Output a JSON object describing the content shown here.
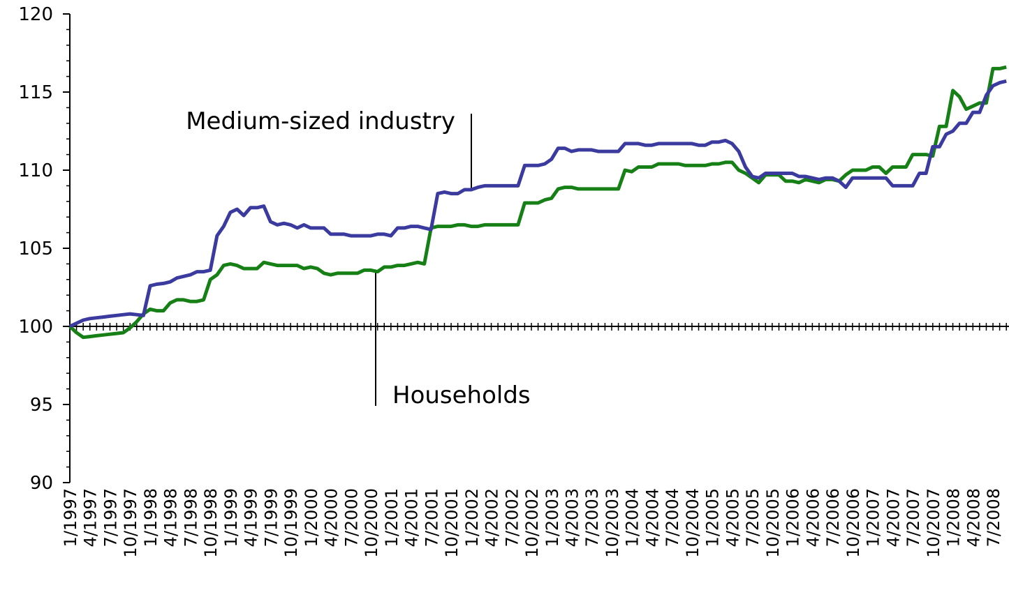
{
  "chart_data": {
    "type": "line",
    "categories": [
      "1/1997",
      null,
      null,
      "4/1997",
      null,
      null,
      "7/1997",
      null,
      null,
      "10/1997",
      null,
      null,
      "1/1998",
      null,
      null,
      "4/1998",
      null,
      null,
      "7/1998",
      null,
      null,
      "10/1998",
      null,
      null,
      "1/1999",
      null,
      null,
      "4/1999",
      null,
      null,
      "7/1999",
      null,
      null,
      "10/1999",
      null,
      null,
      "1/2000",
      null,
      null,
      "4/2000",
      null,
      null,
      "7/2000",
      null,
      null,
      "10/2000",
      null,
      null,
      "1/2001",
      null,
      null,
      "4/2001",
      null,
      null,
      "7/2001",
      null,
      null,
      "10/2001",
      null,
      null,
      "1/2002",
      null,
      null,
      "4/2002",
      null,
      null,
      "7/2002",
      null,
      null,
      "10/2002",
      null,
      null,
      "1/2003",
      null,
      null,
      "4/2003",
      null,
      null,
      "7/2003",
      null,
      null,
      "10/2003",
      null,
      null,
      "1/2004",
      null,
      null,
      "4/2004",
      null,
      null,
      "7/2004",
      null,
      null,
      "10/2004",
      null,
      null,
      "1/2005",
      null,
      null,
      "4/2005",
      null,
      null,
      "7/2005",
      null,
      null,
      "10/2005",
      null,
      null,
      "1/2006",
      null,
      null,
      "4/2006",
      null,
      null,
      "7/2006",
      null,
      null,
      "10/2006",
      null,
      null,
      "1/2007",
      null,
      null,
      "4/2007",
      null,
      null,
      "7/2007",
      null,
      null,
      "10/2007",
      null,
      null,
      "1/2008",
      null,
      null,
      "4/2008",
      null,
      null,
      "7/2008",
      null,
      null
    ],
    "series": [
      {
        "name": "Medium-sized industry",
        "color": "#3b3b9f",
        "values": [
          100,
          100.2,
          100.4,
          100.5,
          100.55,
          100.6,
          100.65,
          100.7,
          100.75,
          100.8,
          100.75,
          100.7,
          102.6,
          102.7,
          102.75,
          102.85,
          103.1,
          103.2,
          103.3,
          103.5,
          103.5,
          103.6,
          105.8,
          106.4,
          107.3,
          107.5,
          107.1,
          107.6,
          107.6,
          107.7,
          106.7,
          106.5,
          106.6,
          106.5,
          106.3,
          106.5,
          106.3,
          106.3,
          106.3,
          105.9,
          105.9,
          105.9,
          105.8,
          105.8,
          105.8,
          105.8,
          105.9,
          105.9,
          105.8,
          106.3,
          106.3,
          106.4,
          106.4,
          106.3,
          106.2,
          108.5,
          108.6,
          108.5,
          108.5,
          108.75,
          108.75,
          108.9,
          109,
          109,
          109,
          109,
          109,
          109,
          110.3,
          110.3,
          110.3,
          110.4,
          110.7,
          111.4,
          111.4,
          111.2,
          111.3,
          111.3,
          111.3,
          111.2,
          111.2,
          111.2,
          111.2,
          111.7,
          111.7,
          111.7,
          111.6,
          111.6,
          111.7,
          111.7,
          111.7,
          111.7,
          111.7,
          111.7,
          111.6,
          111.6,
          111.8,
          111.8,
          111.9,
          111.7,
          111.2,
          110.2,
          109.6,
          109.5,
          109.8,
          109.8,
          109.8,
          109.8,
          109.8,
          109.6,
          109.6,
          109.5,
          109.4,
          109.5,
          109.5,
          109.3,
          108.9,
          109.5,
          109.5,
          109.5,
          109.5,
          109.5,
          109.5,
          109,
          109,
          109,
          109,
          109.8,
          109.8,
          111.5,
          111.5,
          112.3,
          112.5,
          113,
          113,
          113.7,
          113.7,
          114.8,
          115.4,
          115.6,
          115.7
        ]
      },
      {
        "name": "Households",
        "color": "#168016",
        "values": [
          100,
          99.6,
          99.3,
          99.35,
          99.4,
          99.45,
          99.5,
          99.55,
          99.6,
          99.9,
          100.3,
          100.8,
          101.1,
          101,
          101,
          101.5,
          101.7,
          101.7,
          101.6,
          101.6,
          101.7,
          103,
          103.3,
          103.9,
          104,
          103.9,
          103.7,
          103.7,
          103.7,
          104.1,
          104,
          103.9,
          103.9,
          103.9,
          103.9,
          103.7,
          103.8,
          103.7,
          103.4,
          103.3,
          103.4,
          103.4,
          103.4,
          103.4,
          103.6,
          103.6,
          103.5,
          103.8,
          103.8,
          103.9,
          103.9,
          104,
          104.1,
          104,
          106.3,
          106.4,
          106.4,
          106.4,
          106.5,
          106.5,
          106.4,
          106.4,
          106.5,
          106.5,
          106.5,
          106.5,
          106.5,
          106.5,
          107.9,
          107.9,
          107.9,
          108.1,
          108.2,
          108.8,
          108.9,
          108.9,
          108.8,
          108.8,
          108.8,
          108.8,
          108.8,
          108.8,
          108.8,
          110,
          109.9,
          110.2,
          110.2,
          110.2,
          110.4,
          110.4,
          110.4,
          110.4,
          110.3,
          110.3,
          110.3,
          110.3,
          110.4,
          110.4,
          110.5,
          110.5,
          110,
          109.8,
          109.5,
          109.2,
          109.7,
          109.7,
          109.7,
          109.3,
          109.3,
          109.2,
          109.4,
          109.3,
          109.2,
          109.4,
          109.4,
          109.3,
          109.7,
          110,
          110,
          110,
          110.2,
          110.2,
          109.8,
          110.2,
          110.2,
          110.2,
          111,
          111,
          111,
          110.9,
          112.8,
          112.8,
          115.1,
          114.7,
          113.9,
          114.1,
          114.3,
          114.3,
          116.5,
          116.5,
          116.6
        ]
      }
    ],
    "ylim": [
      90,
      120
    ],
    "yticks": [
      90,
      95,
      100,
      105,
      110,
      115,
      120
    ],
    "yminorticks": [
      91,
      92,
      93,
      94,
      96,
      97,
      98,
      99,
      101,
      102,
      103,
      104,
      106,
      107,
      108,
      109,
      111,
      112,
      113,
      114,
      116,
      117,
      118,
      119
    ],
    "xaxis_at": 100
  }
}
